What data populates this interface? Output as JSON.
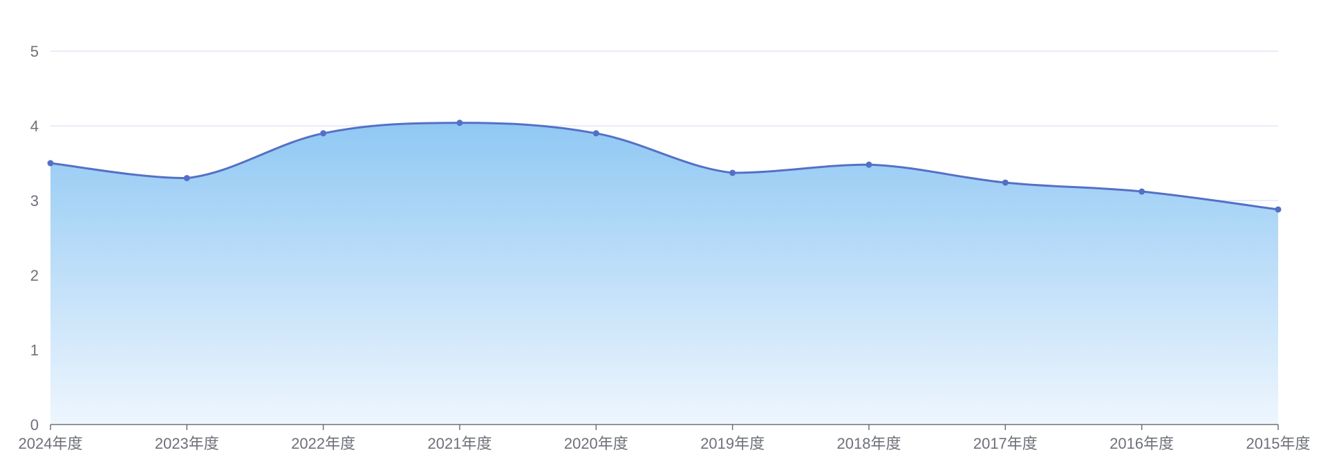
{
  "chart_data": {
    "type": "area",
    "title": "",
    "xlabel": "",
    "ylabel": "",
    "categories": [
      "2024年度",
      "2023年度",
      "2022年度",
      "2021年度",
      "2020年度",
      "2019年度",
      "2018年度",
      "2017年度",
      "2016年度",
      "2015年度"
    ],
    "series": [
      {
        "values": [
          3.5,
          3.3,
          3.9,
          4.04,
          3.9,
          3.37,
          3.48,
          3.24,
          3.12,
          2.88
        ]
      }
    ],
    "ylim": [
      0,
      5
    ],
    "yticks": [
      0,
      1,
      2,
      3,
      4,
      5
    ],
    "grid": true,
    "smooth": true,
    "colors": {
      "line": "#5470c6",
      "area_top": "#90c8f3",
      "area_bottom": "#eef6fe",
      "grid": "#e0e6f1",
      "axis": "#6e7079"
    }
  }
}
